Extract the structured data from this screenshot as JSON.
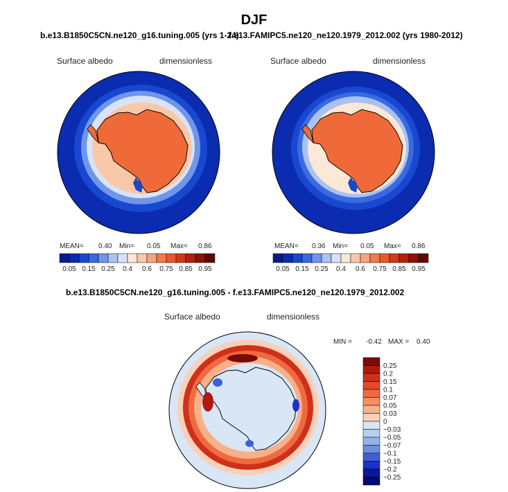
{
  "page": {
    "title": "DJF"
  },
  "panels": [
    {
      "title": "b.e13.B1850C5CN.ne120_g16.tuning.005 (yrs 1-24)",
      "variable": "Surface albedo",
      "units": "dimensionless",
      "mean_label": "MEAN=",
      "mean": "0.40",
      "min_label": "Min=",
      "min": "0.05",
      "max_label": "Max=",
      "max": "0.86"
    },
    {
      "title": "f.e13.FAMIPC5.ne120_ne120.1979_2012.002 (yrs 1980-2012)",
      "variable": "Surface albedo",
      "units": "dimensionless",
      "mean_label": "MEAN=",
      "mean": "0.36",
      "min_label": "Min=",
      "min": "0.05",
      "max_label": "Max=",
      "max": "0.86"
    },
    {
      "title": "b.e13.B1850C5CN.ne120_g16.tuning.005 - f.e13.FAMIPC5.ne120_ne120.1979_2012.002",
      "variable": "Surface albedo",
      "units": "dimensionless",
      "min_label": "MIN =",
      "min": "-0.42",
      "max_label": "MAX =",
      "max": "0.40"
    }
  ],
  "chart_data": [
    {
      "type": "heatmap",
      "projection": "south polar stereographic",
      "title": "b.e13.B1850C5CN.ne120_g16.tuning.005 (yrs 1-24)",
      "variable": "Surface albedo",
      "units": "dimensionless",
      "mean": 0.4,
      "min": 0.05,
      "max": 0.86,
      "colorbar": {
        "orientation": "horizontal",
        "levels": [
          0.05,
          0.15,
          0.25,
          0.4,
          0.6,
          0.75,
          0.85,
          0.95
        ],
        "tick_labels": [
          "0.05",
          "0.15",
          "0.25",
          "0.4",
          "0.6",
          "0.75",
          "0.85",
          "0.95"
        ],
        "colors": [
          "#0a1a8c",
          "#0b2cb0",
          "#1848d0",
          "#3a6ae0",
          "#6f96ea",
          "#a9c2f0",
          "#d8e4f6",
          "#fde7d6",
          "#f9c8a8",
          "#f5a47c",
          "#ef7a4e",
          "#e85a2c",
          "#cf3a18",
          "#b0220e",
          "#8a1206",
          "#5e0802"
        ]
      },
      "regions": {
        "open_ocean": 0.06,
        "sea_ice_margin": 0.3,
        "sea_ice": 0.55,
        "ice_sheet": 0.81
      }
    },
    {
      "type": "heatmap",
      "projection": "south polar stereographic",
      "title": "f.e13.FAMIPC5.ne120_ne120.1979_2012.002 (yrs 1980-2012)",
      "variable": "Surface albedo",
      "units": "dimensionless",
      "mean": 0.36,
      "min": 0.05,
      "max": 0.86,
      "colorbar": {
        "orientation": "horizontal",
        "levels": [
          0.05,
          0.15,
          0.25,
          0.4,
          0.6,
          0.75,
          0.85,
          0.95
        ],
        "tick_labels": [
          "0.05",
          "0.15",
          "0.25",
          "0.4",
          "0.6",
          "0.75",
          "0.85",
          "0.95"
        ],
        "colors": [
          "#0a1a8c",
          "#0b2cb0",
          "#1848d0",
          "#3a6ae0",
          "#6f96ea",
          "#a9c2f0",
          "#d8e4f6",
          "#fde7d6",
          "#f9c8a8",
          "#f5a47c",
          "#ef7a4e",
          "#e85a2c",
          "#cf3a18",
          "#b0220e",
          "#8a1206",
          "#5e0802"
        ]
      },
      "regions": {
        "open_ocean": 0.06,
        "sea_ice_margin": 0.25,
        "sea_ice": 0.5,
        "ice_sheet": 0.81
      }
    },
    {
      "type": "heatmap",
      "projection": "south polar stereographic",
      "title": "b.e13.B1850C5CN.ne120_g16.tuning.005 - f.e13.FAMIPC5.ne120_ne120.1979_2012.002",
      "variable": "Surface albedo",
      "units": "dimensionless",
      "min": -0.42,
      "max": 0.4,
      "colorbar": {
        "orientation": "vertical",
        "levels": [
          0.25,
          0.2,
          0.15,
          0.1,
          0.07,
          0.05,
          0.03,
          0,
          -0.03,
          -0.05,
          -0.07,
          -0.1,
          -0.15,
          -0.2,
          -0.25
        ],
        "tick_labels": [
          "0.25",
          "0.2",
          "0.15",
          "0.1",
          "0.07",
          "0.05",
          "0.03",
          "0",
          "−0.03",
          "−0.05",
          "−0.07",
          "−0.1",
          "−0.15",
          "−0.2",
          "−0.25"
        ],
        "colors": [
          "#7a0a0a",
          "#b01a0c",
          "#d0301a",
          "#e24a28",
          "#f06a40",
          "#f59060",
          "#f8b088",
          "#fbd0b8",
          "#d8e6f6",
          "#b8cff0",
          "#95b2ea",
          "#6d8fe0",
          "#3f5fd8",
          "#1a32c8",
          "#0a18a0",
          "#000a70"
        ]
      },
      "regions": {
        "interior": 0.0,
        "sea_ice_zone": 0.15,
        "coastal_polynya": -0.1
      }
    }
  ]
}
